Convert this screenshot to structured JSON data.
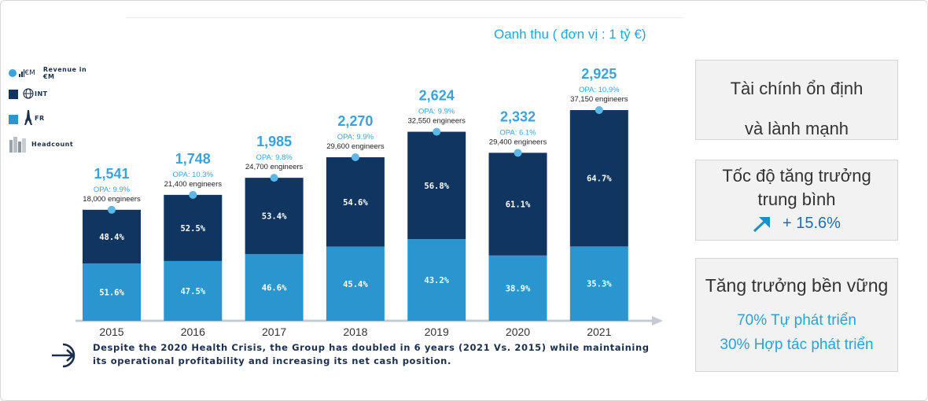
{
  "unit_label": "Oanh thu ( đơn vị : 1 tỷ €)",
  "legend": [
    {
      "icon": "revenue-icon",
      "text": "Revenue in €M",
      "color": "#3aa3dc"
    },
    {
      "icon": "globe-icon",
      "text": "INT",
      "color": "#0f3560"
    },
    {
      "icon": "eiffel-tower-icon",
      "text": "FR",
      "color": "#2a96cf"
    },
    {
      "icon": "buildings-icon",
      "text": "Headcount",
      "color": "#9aa4ae"
    }
  ],
  "chart_data": {
    "type": "bar",
    "stacked": true,
    "categories": [
      "2015",
      "2016",
      "2017",
      "2018",
      "2019",
      "2020",
      "2021"
    ],
    "series": [
      {
        "name": "FR",
        "values": [
          51.6,
          47.5,
          46.6,
          45.4,
          43.2,
          38.9,
          35.3
        ]
      },
      {
        "name": "INT",
        "values": [
          48.4,
          52.5,
          53.4,
          54.6,
          56.8,
          61.1,
          64.7
        ]
      }
    ],
    "segment_labels": {
      "fr": [
        "51.6%",
        "47.5%",
        "46.6%",
        "45.4%",
        "43.2%",
        "38.9%",
        "35.3%"
      ],
      "int": [
        "48.4%",
        "52.5%",
        "53.4%",
        "54.6%",
        "56.8%",
        "61.1%",
        "64.7%"
      ]
    },
    "revenue": [
      1541,
      1748,
      1985,
      2270,
      2624,
      2332,
      2925
    ],
    "revenue_labels": [
      "1,541",
      "1,748",
      "1,985",
      "2,270",
      "2,624",
      "2,332",
      "2,925"
    ],
    "opa": [
      "OPA: 9.9%",
      "OPA: 10.3%",
      "OPA: 9.8%",
      "OPA: 9.9%",
      "OPA: 9.9%",
      "OPA: 6.1%",
      "OPA: 10.9%"
    ],
    "headcount": [
      "18,000 engineers",
      "21,400 engineers",
      "24,700 engineers",
      "29,600 engineers",
      "32,550 engineers",
      "29,400 engineers",
      "37,150 engineers"
    ],
    "colors": {
      "fr": "#2a96cf",
      "int": "#0f3560",
      "revenue": "#3aa3dc",
      "marker": "#5bb8e8",
      "axis": "#c5cad3"
    }
  },
  "footer": {
    "text": "Despite the 2020 Health Crisis, the Group has doubled in 6 years (2021 Vs. 2015) while maintaining its operational profitability and increasing its net cash position."
  },
  "cards": {
    "financial": {
      "line1": "Tài chính ổn định",
      "line2": "và lành mạnh"
    },
    "growth": {
      "line1": "Tốc độ tăng trưởng",
      "line2": "trung bình",
      "value": "+ 15.6%"
    },
    "sustainable": {
      "title": "Tăng trưởng bền vững",
      "line1": "70% Tự phát triển",
      "line2": "30% Hợp tác phát triển"
    }
  }
}
